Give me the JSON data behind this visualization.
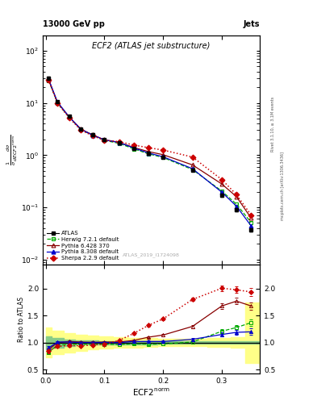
{
  "title_top": "13000 GeV pp",
  "title_right": "Jets",
  "plot_title": "ECF2 (ATLAS jet substructure)",
  "xlabel": "ECF2$^{\\rm norm}$",
  "ylabel_main": "$\\frac{1}{\\sigma}\\frac{d\\sigma}{dECF2^{\\rm norm}}$",
  "ylabel_ratio": "Ratio to ATLAS",
  "watermark": "ATLAS_2019_I1724098",
  "right_label1": "Rivet 3.1.10, ≥ 3.1M events",
  "right_label2": "mcplots.cern.ch [arXiv:1306.3436]",
  "x_data": [
    0.005,
    0.02,
    0.04,
    0.06,
    0.08,
    0.1,
    0.125,
    0.15,
    0.175,
    0.2,
    0.25,
    0.3,
    0.325,
    0.35
  ],
  "atlas_y": [
    30.0,
    10.5,
    5.5,
    3.2,
    2.5,
    2.0,
    1.75,
    1.35,
    1.1,
    0.92,
    0.52,
    0.17,
    0.09,
    0.037
  ],
  "atlas_yerr": [
    1.5,
    0.4,
    0.2,
    0.1,
    0.1,
    0.08,
    0.07,
    0.06,
    0.05,
    0.04,
    0.03,
    0.01,
    0.005,
    0.003
  ],
  "herwig_y": [
    27.0,
    10.0,
    5.3,
    3.1,
    2.4,
    1.92,
    1.68,
    1.32,
    1.06,
    0.9,
    0.53,
    0.205,
    0.115,
    0.051
  ],
  "pythia6_y": [
    27.5,
    10.3,
    5.4,
    3.15,
    2.45,
    1.97,
    1.76,
    1.4,
    1.17,
    1.02,
    0.65,
    0.28,
    0.16,
    0.062
  ],
  "pythia8_y": [
    28.5,
    10.4,
    5.38,
    3.12,
    2.42,
    1.96,
    1.75,
    1.37,
    1.1,
    0.93,
    0.55,
    0.195,
    0.105,
    0.044
  ],
  "sherpa_y": [
    28.0,
    9.8,
    5.2,
    3.0,
    2.35,
    1.92,
    1.82,
    1.56,
    1.39,
    1.25,
    0.92,
    0.34,
    0.175,
    0.071
  ],
  "ratio_herwig": [
    0.82,
    0.95,
    0.965,
    0.97,
    0.965,
    0.97,
    0.96,
    0.978,
    0.97,
    0.975,
    1.01,
    1.21,
    1.28,
    1.37
  ],
  "ratio_pythia6": [
    0.87,
    1.0,
    1.02,
    1.01,
    1.005,
    1.01,
    1.01,
    1.04,
    1.1,
    1.14,
    1.3,
    1.68,
    1.77,
    1.68
  ],
  "ratio_pythia8": [
    0.9,
    1.01,
    1.01,
    1.0,
    1.0,
    1.0,
    1.0,
    1.02,
    1.02,
    1.02,
    1.06,
    1.15,
    1.19,
    1.2
  ],
  "ratio_sherpa": [
    0.84,
    0.93,
    0.945,
    0.94,
    0.955,
    0.97,
    1.04,
    1.17,
    1.32,
    1.44,
    1.8,
    2.01,
    1.98,
    1.94
  ],
  "ratio_herwig_err": [
    0.04,
    0.02,
    0.02,
    0.02,
    0.02,
    0.02,
    0.02,
    0.02,
    0.02,
    0.02,
    0.03,
    0.04,
    0.05,
    0.06
  ],
  "ratio_pythia6_err": [
    0.04,
    0.02,
    0.02,
    0.02,
    0.02,
    0.02,
    0.02,
    0.02,
    0.02,
    0.02,
    0.03,
    0.05,
    0.06,
    0.07
  ],
  "ratio_pythia8_err": [
    0.04,
    0.02,
    0.02,
    0.02,
    0.02,
    0.02,
    0.02,
    0.02,
    0.02,
    0.02,
    0.03,
    0.04,
    0.05,
    0.06
  ],
  "ratio_sherpa_err": [
    0.04,
    0.02,
    0.02,
    0.02,
    0.02,
    0.02,
    0.02,
    0.02,
    0.02,
    0.02,
    0.03,
    0.05,
    0.06,
    0.07
  ],
  "band_x": [
    0.0,
    0.01,
    0.03,
    0.05,
    0.07,
    0.09,
    0.115,
    0.14,
    0.165,
    0.19,
    0.225,
    0.275,
    0.315,
    0.34,
    0.365
  ],
  "band_green_lo": [
    0.88,
    0.91,
    0.94,
    0.96,
    0.965,
    0.97,
    0.97,
    0.97,
    0.972,
    0.975,
    0.978,
    0.978,
    0.978,
    0.978,
    0.978
  ],
  "band_green_hi": [
    1.12,
    1.09,
    1.06,
    1.04,
    1.035,
    1.03,
    1.03,
    1.03,
    1.028,
    1.025,
    1.022,
    1.022,
    1.022,
    1.022,
    1.022
  ],
  "band_yellow_lo": [
    0.72,
    0.78,
    0.82,
    0.85,
    0.87,
    0.89,
    0.9,
    0.91,
    0.92,
    0.93,
    0.93,
    0.92,
    0.9,
    0.62,
    0.55
  ],
  "band_yellow_hi": [
    1.28,
    1.22,
    1.18,
    1.15,
    1.13,
    1.11,
    1.1,
    1.09,
    1.08,
    1.07,
    1.07,
    1.08,
    1.1,
    1.75,
    1.9
  ],
  "herwig_color": "#00aa00",
  "pythia6_color": "#cc2200",
  "pythia8_color": "#0000cc",
  "sherpa_color": "#cc0000",
  "atlas_color": "black",
  "xlim": [
    -0.005,
    0.365
  ],
  "ylim_main": [
    0.008,
    200
  ],
  "ylim_ratio": [
    0.42,
    2.45
  ],
  "xticks": [
    0.0,
    0.1,
    0.2,
    0.3
  ],
  "yticks_ratio": [
    0.5,
    1.0,
    1.5,
    2.0
  ]
}
